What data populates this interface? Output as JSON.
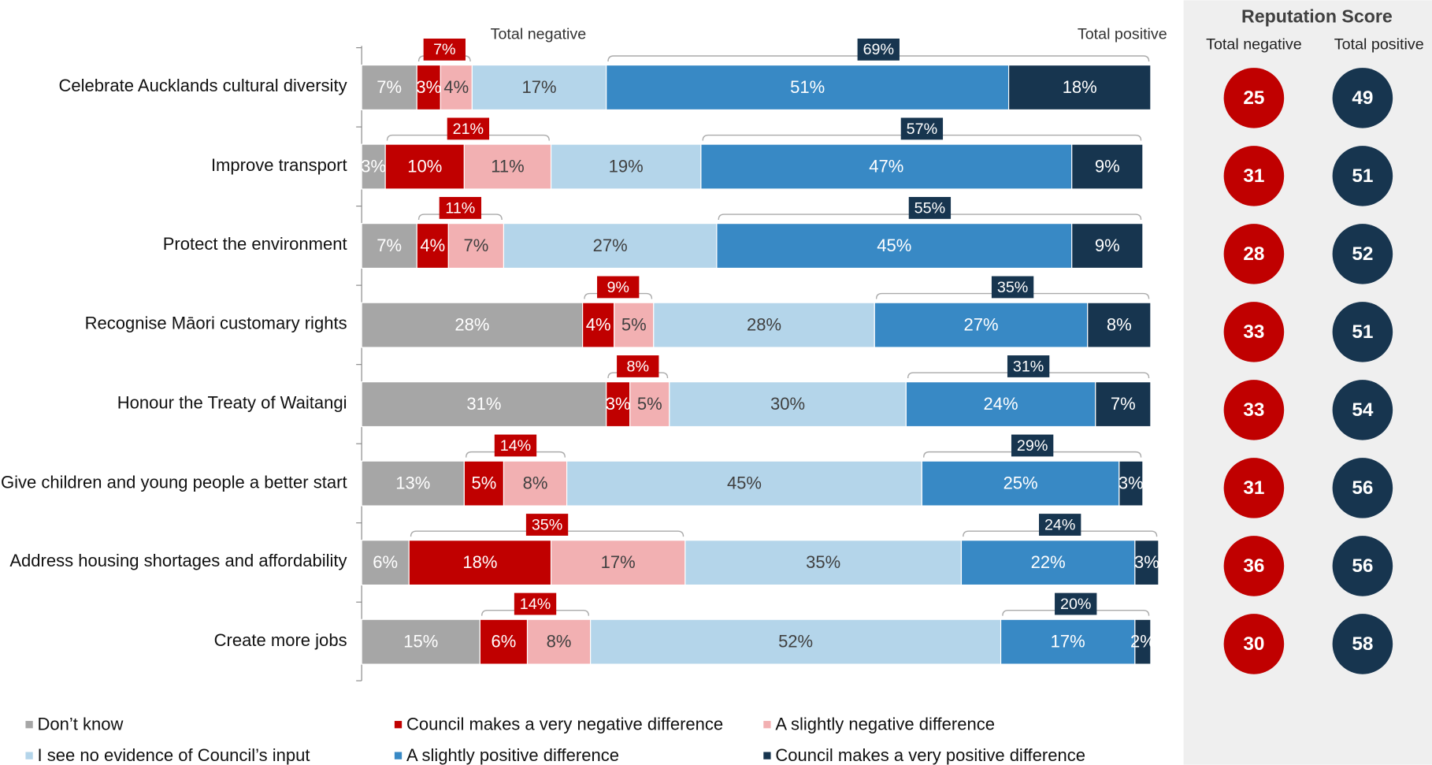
{
  "chart_data": {
    "type": "bar",
    "orientation": "horizontal",
    "stacked": true,
    "categories": [
      "Celebrate Aucklands cultural diversity",
      "Improve transport",
      "Protect the environment",
      "Recognise Māori customary rights",
      "Honour the Treaty of Waitangi",
      "Give children and young people a better start",
      "Address housing shortages and affordability",
      "Create more jobs"
    ],
    "xlim": [
      0,
      100
    ],
    "series": [
      {
        "name": "Don’t know",
        "color": "#a6a6a6",
        "label_color": "#ffffff",
        "values": [
          7,
          3,
          7,
          28,
          31,
          13,
          6,
          15
        ],
        "value_labels": [
          "7%",
          "3%",
          "7%",
          "28%",
          "31%",
          "13%",
          "6%",
          "15%"
        ]
      },
      {
        "name": "Council makes a very negative difference",
        "color": "#c00000",
        "label_color": "#ffffff",
        "values": [
          3,
          10,
          4,
          4,
          3,
          5,
          18,
          6
        ],
        "value_labels": [
          "3%",
          "10%",
          "4%",
          "4%",
          "3%",
          "5%",
          "18%",
          "6%"
        ]
      },
      {
        "name": "A slightly negative difference",
        "color": "#f2b0b2",
        "label_color": "#404040",
        "values": [
          4,
          11,
          7,
          5,
          5,
          8,
          17,
          8
        ],
        "value_labels": [
          "4%",
          "11%",
          "7%",
          "5%",
          "5%",
          "8%",
          "17%",
          "8%"
        ]
      },
      {
        "name": "I see no evidence of Council’s input",
        "color": "#b4d5ea",
        "label_color": "#404040",
        "values": [
          17,
          19,
          27,
          28,
          30,
          45,
          35,
          52
        ],
        "value_labels": [
          "17%",
          "19%",
          "27%",
          "28%",
          "30%",
          "45%",
          "35%",
          "52%"
        ]
      },
      {
        "name": "A slightly positive difference",
        "color": "#3889c5",
        "label_color": "#ffffff",
        "values": [
          51,
          47,
          45,
          27,
          24,
          25,
          22,
          17
        ],
        "value_labels": [
          "51%",
          "47%",
          "45%",
          "27%",
          "24%",
          "25%",
          "22%",
          "17%"
        ]
      },
      {
        "name": "Council makes a very positive difference",
        "color": "#17354f",
        "label_color": "#ffffff",
        "values": [
          18,
          9,
          9,
          8,
          7,
          3,
          3,
          2
        ],
        "value_labels": [
          "18%",
          "9%",
          "9%",
          "8%",
          "7%",
          "3%",
          "3%",
          "2%"
        ]
      }
    ],
    "total_negative": {
      "name": "Total negative",
      "color": "#c00000",
      "values": [
        7,
        21,
        11,
        9,
        8,
        14,
        35,
        14
      ],
      "value_labels": [
        "7%",
        "21%",
        "11%",
        "9%",
        "8%",
        "14%",
        "35%",
        "14%"
      ]
    },
    "total_positive": {
      "name": "Total positive",
      "color": "#17354f",
      "values": [
        69,
        57,
        55,
        35,
        31,
        29,
        24,
        20
      ],
      "value_labels": [
        "69%",
        "57%",
        "55%",
        "35%",
        "31%",
        "29%",
        "24%",
        "20%"
      ]
    }
  },
  "reputation": {
    "title": "Reputation Score",
    "negative": {
      "name": "Total negative",
      "color": "#c00000",
      "values": [
        25,
        31,
        28,
        33,
        33,
        31,
        36,
        30
      ]
    },
    "positive": {
      "name": "Total positive",
      "color": "#17354f",
      "values": [
        49,
        51,
        52,
        51,
        54,
        56,
        56,
        58
      ]
    }
  }
}
